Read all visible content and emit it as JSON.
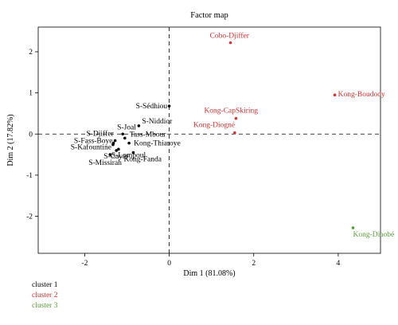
{
  "chart_data": {
    "type": "scatter",
    "title": "Factor map",
    "xlabel": "Dim 1 (81.08%)",
    "ylabel": "Dim 2 (17.82%)",
    "xlim": [
      -3.1,
      5.0
    ],
    "ylim": [
      -2.9,
      2.6
    ],
    "xticks": [
      -2,
      0,
      2,
      4
    ],
    "yticks": [
      -2,
      -1,
      0,
      1,
      2
    ],
    "reference_lines": {
      "x": 0,
      "y": 0,
      "style": "dashed"
    },
    "grid": false,
    "legend_position": "below-left",
    "series": [
      {
        "name": "cluster 1",
        "color": "#000000",
        "points": [
          {
            "label": "S-Sédhiou",
            "x": 0.0,
            "y": 0.68
          },
          {
            "label": "S-Niddior",
            "x": -0.72,
            "y": 0.2
          },
          {
            "label": "S-Joal",
            "x": -1.1,
            "y": 0.0
          },
          {
            "label": "Tass-Mbour",
            "x": -1.05,
            "y": -0.1
          },
          {
            "label": "Kong-Thiaroye",
            "x": -0.95,
            "y": -0.22
          },
          {
            "label": "S-Djiffer",
            "x": -1.28,
            "y": -0.16
          },
          {
            "label": "S-Fass-Boye",
            "x": -1.32,
            "y": -0.22
          },
          {
            "label": "S-Kafountine",
            "x": -1.33,
            "y": -0.26
          },
          {
            "label": "S-Lompoul",
            "x": -1.2,
            "y": -0.37
          },
          {
            "label": "S-Cayar",
            "x": -1.25,
            "y": -0.4
          },
          {
            "label": "Kong-Fanda",
            "x": -0.85,
            "y": -0.45
          },
          {
            "label": "S-Missirah",
            "x": -1.4,
            "y": -0.5
          }
        ]
      },
      {
        "name": "cluster 2",
        "color": "#cc3333",
        "points": [
          {
            "label": "Cobo-Djiffer",
            "x": 1.45,
            "y": 2.22
          },
          {
            "label": "Kong-Boudody",
            "x": 3.92,
            "y": 0.95
          },
          {
            "label": "Kong-CapSkiring",
            "x": 1.58,
            "y": 0.38
          },
          {
            "label": "Kong-Diogné",
            "x": 1.55,
            "y": 0.03
          }
        ]
      },
      {
        "name": "cluster 3",
        "color": "#5a9a3a",
        "points": [
          {
            "label": "Kong-Diaobé",
            "x": 4.35,
            "y": -2.28
          }
        ]
      }
    ]
  }
}
